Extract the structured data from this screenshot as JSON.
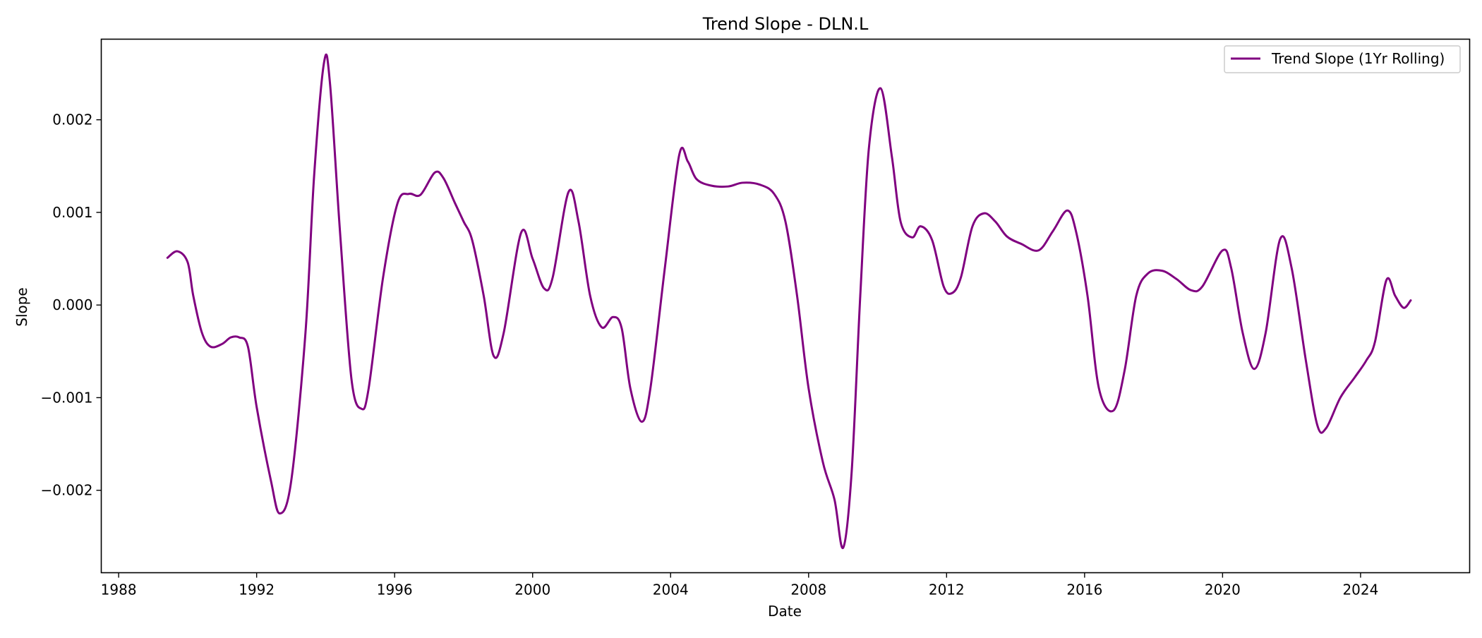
{
  "chart_data": {
    "type": "line",
    "title": "Trend Slope - DLN.L",
    "xlabel": "Date",
    "ylabel": "Slope",
    "xlim": [
      "1987-07-01",
      "2027-03-01"
    ],
    "ylim": [
      -0.00289,
      0.00287
    ],
    "x_ticks": [
      "1988",
      "1992",
      "1996",
      "2000",
      "2004",
      "2008",
      "2012",
      "2016",
      "2020",
      "2024"
    ],
    "y_ticks": [
      {
        "value": 0.002,
        "label": "0.002"
      },
      {
        "value": 0.001,
        "label": "0.001"
      },
      {
        "value": 0.0,
        "label": "0.000"
      },
      {
        "value": -0.001,
        "label": "−0.001"
      },
      {
        "value": -0.002,
        "label": "−0.002"
      }
    ],
    "grid": false,
    "legend_position": "upper right",
    "colors": {
      "series": "#800080"
    },
    "series": [
      {
        "name": "Trend Slope (1Yr Rolling)",
        "color": "#800080",
        "points": [
          [
            "1989-06-01",
            0.00051
          ],
          [
            "1989-09-15",
            0.00058
          ],
          [
            "1990-01-01",
            0.00046
          ],
          [
            "1990-03-01",
            0.0001
          ],
          [
            "1990-06-01",
            -0.0003
          ],
          [
            "1990-09-01",
            -0.00045
          ],
          [
            "1991-01-01",
            -0.00042
          ],
          [
            "1991-04-01",
            -0.00035
          ],
          [
            "1991-07-01",
            -0.00035
          ],
          [
            "1991-10-01",
            -0.00045
          ],
          [
            "1992-01-01",
            -0.0011
          ],
          [
            "1992-06-01",
            -0.0019
          ],
          [
            "1992-09-01",
            -0.00225
          ],
          [
            "1993-01-01",
            -0.0019
          ],
          [
            "1993-06-01",
            -0.0003
          ],
          [
            "1993-09-01",
            0.0014
          ],
          [
            "1993-12-15",
            0.00262
          ],
          [
            "1994-02-15",
            0.0024
          ],
          [
            "1994-06-01",
            0.0008
          ],
          [
            "1994-10-01",
            -0.0008
          ],
          [
            "1995-01-15",
            -0.00112
          ],
          [
            "1995-04-01",
            -0.0009
          ],
          [
            "1995-09-01",
            0.0003
          ],
          [
            "1996-02-01",
            0.0011
          ],
          [
            "1996-06-01",
            0.0012
          ],
          [
            "1996-10-01",
            0.00119
          ],
          [
            "1997-03-01",
            0.00143
          ],
          [
            "1997-06-01",
            0.00137
          ],
          [
            "1997-10-01",
            0.0011
          ],
          [
            "1998-01-01",
            0.0009
          ],
          [
            "1998-04-01",
            0.0007
          ],
          [
            "1998-08-01",
            0.0001
          ],
          [
            "1998-11-15",
            -0.00055
          ],
          [
            "1999-03-01",
            -0.0003
          ],
          [
            "1999-09-01",
            0.00078
          ],
          [
            "2000-01-01",
            0.0005
          ],
          [
            "2000-05-01",
            0.00018
          ],
          [
            "2000-08-01",
            0.0003
          ],
          [
            "2001-01-15",
            0.00122
          ],
          [
            "2001-05-01",
            0.0009
          ],
          [
            "2001-09-01",
            0.0001
          ],
          [
            "2002-01-01",
            -0.00024
          ],
          [
            "2002-05-01",
            -0.00013
          ],
          [
            "2002-08-01",
            -0.00025
          ],
          [
            "2002-11-01",
            -0.0009
          ],
          [
            "2003-03-01",
            -0.00126
          ],
          [
            "2003-06-01",
            -0.0009
          ],
          [
            "2003-11-01",
            0.0004
          ],
          [
            "2004-04-01",
            0.00162
          ],
          [
            "2004-07-01",
            0.00155
          ],
          [
            "2004-10-01",
            0.00136
          ],
          [
            "2005-03-01",
            0.00129
          ],
          [
            "2005-09-01",
            0.00128
          ],
          [
            "2006-02-01",
            0.00132
          ],
          [
            "2006-08-01",
            0.0013
          ],
          [
            "2007-01-01",
            0.0012
          ],
          [
            "2007-05-01",
            0.0009
          ],
          [
            "2007-09-01",
            0.0001
          ],
          [
            "2008-01-01",
            -0.0009
          ],
          [
            "2008-06-01",
            -0.0017
          ],
          [
            "2008-10-01",
            -0.0021
          ],
          [
            "2009-01-01",
            -0.00262
          ],
          [
            "2009-04-01",
            -0.0018
          ],
          [
            "2009-07-01",
            0.0001
          ],
          [
            "2009-10-01",
            0.0017
          ],
          [
            "2010-02-01",
            0.00234
          ],
          [
            "2010-06-01",
            0.0016
          ],
          [
            "2010-09-01",
            0.0009
          ],
          [
            "2011-01-01",
            0.00073
          ],
          [
            "2011-04-01",
            0.00085
          ],
          [
            "2011-08-01",
            0.0007
          ],
          [
            "2011-12-01",
            0.0002
          ],
          [
            "2012-03-01",
            0.00013
          ],
          [
            "2012-06-01",
            0.0003
          ],
          [
            "2012-10-01",
            0.00085
          ],
          [
            "2013-02-01",
            0.00099
          ],
          [
            "2013-06-01",
            0.0009
          ],
          [
            "2013-10-01",
            0.00074
          ],
          [
            "2014-03-01",
            0.00066
          ],
          [
            "2014-09-01",
            0.00059
          ],
          [
            "2015-02-01",
            0.0008
          ],
          [
            "2015-07-01",
            0.00102
          ],
          [
            "2015-10-01",
            0.0008
          ],
          [
            "2016-02-01",
            0.0001
          ],
          [
            "2016-06-01",
            -0.0009
          ],
          [
            "2016-11-01",
            -0.00114
          ],
          [
            "2017-03-01",
            -0.0007
          ],
          [
            "2017-07-01",
            0.0001
          ],
          [
            "2017-11-01",
            0.00034
          ],
          [
            "2018-04-01",
            0.00037
          ],
          [
            "2018-09-01",
            0.00028
          ],
          [
            "2019-02-01",
            0.00016
          ],
          [
            "2019-06-01",
            0.0002
          ],
          [
            "2020-01-01",
            0.00059
          ],
          [
            "2020-04-01",
            0.0004
          ],
          [
            "2020-08-01",
            -0.0003
          ],
          [
            "2020-12-01",
            -0.00069
          ],
          [
            "2021-04-01",
            -0.0003
          ],
          [
            "2021-09-01",
            0.00071
          ],
          [
            "2022-01-01",
            0.0004
          ],
          [
            "2022-06-01",
            -0.0006
          ],
          [
            "2022-10-01",
            -0.0013
          ],
          [
            "2023-01-01",
            -0.00133
          ],
          [
            "2023-06-01",
            -0.001
          ],
          [
            "2023-11-01",
            -0.00078
          ],
          [
            "2024-03-01",
            -0.0006
          ],
          [
            "2024-06-01",
            -0.0004
          ],
          [
            "2024-10-01",
            0.00027
          ],
          [
            "2025-01-01",
            0.0001
          ],
          [
            "2025-04-01",
            -3e-05
          ],
          [
            "2025-06-15",
            5e-05
          ]
        ]
      }
    ]
  }
}
